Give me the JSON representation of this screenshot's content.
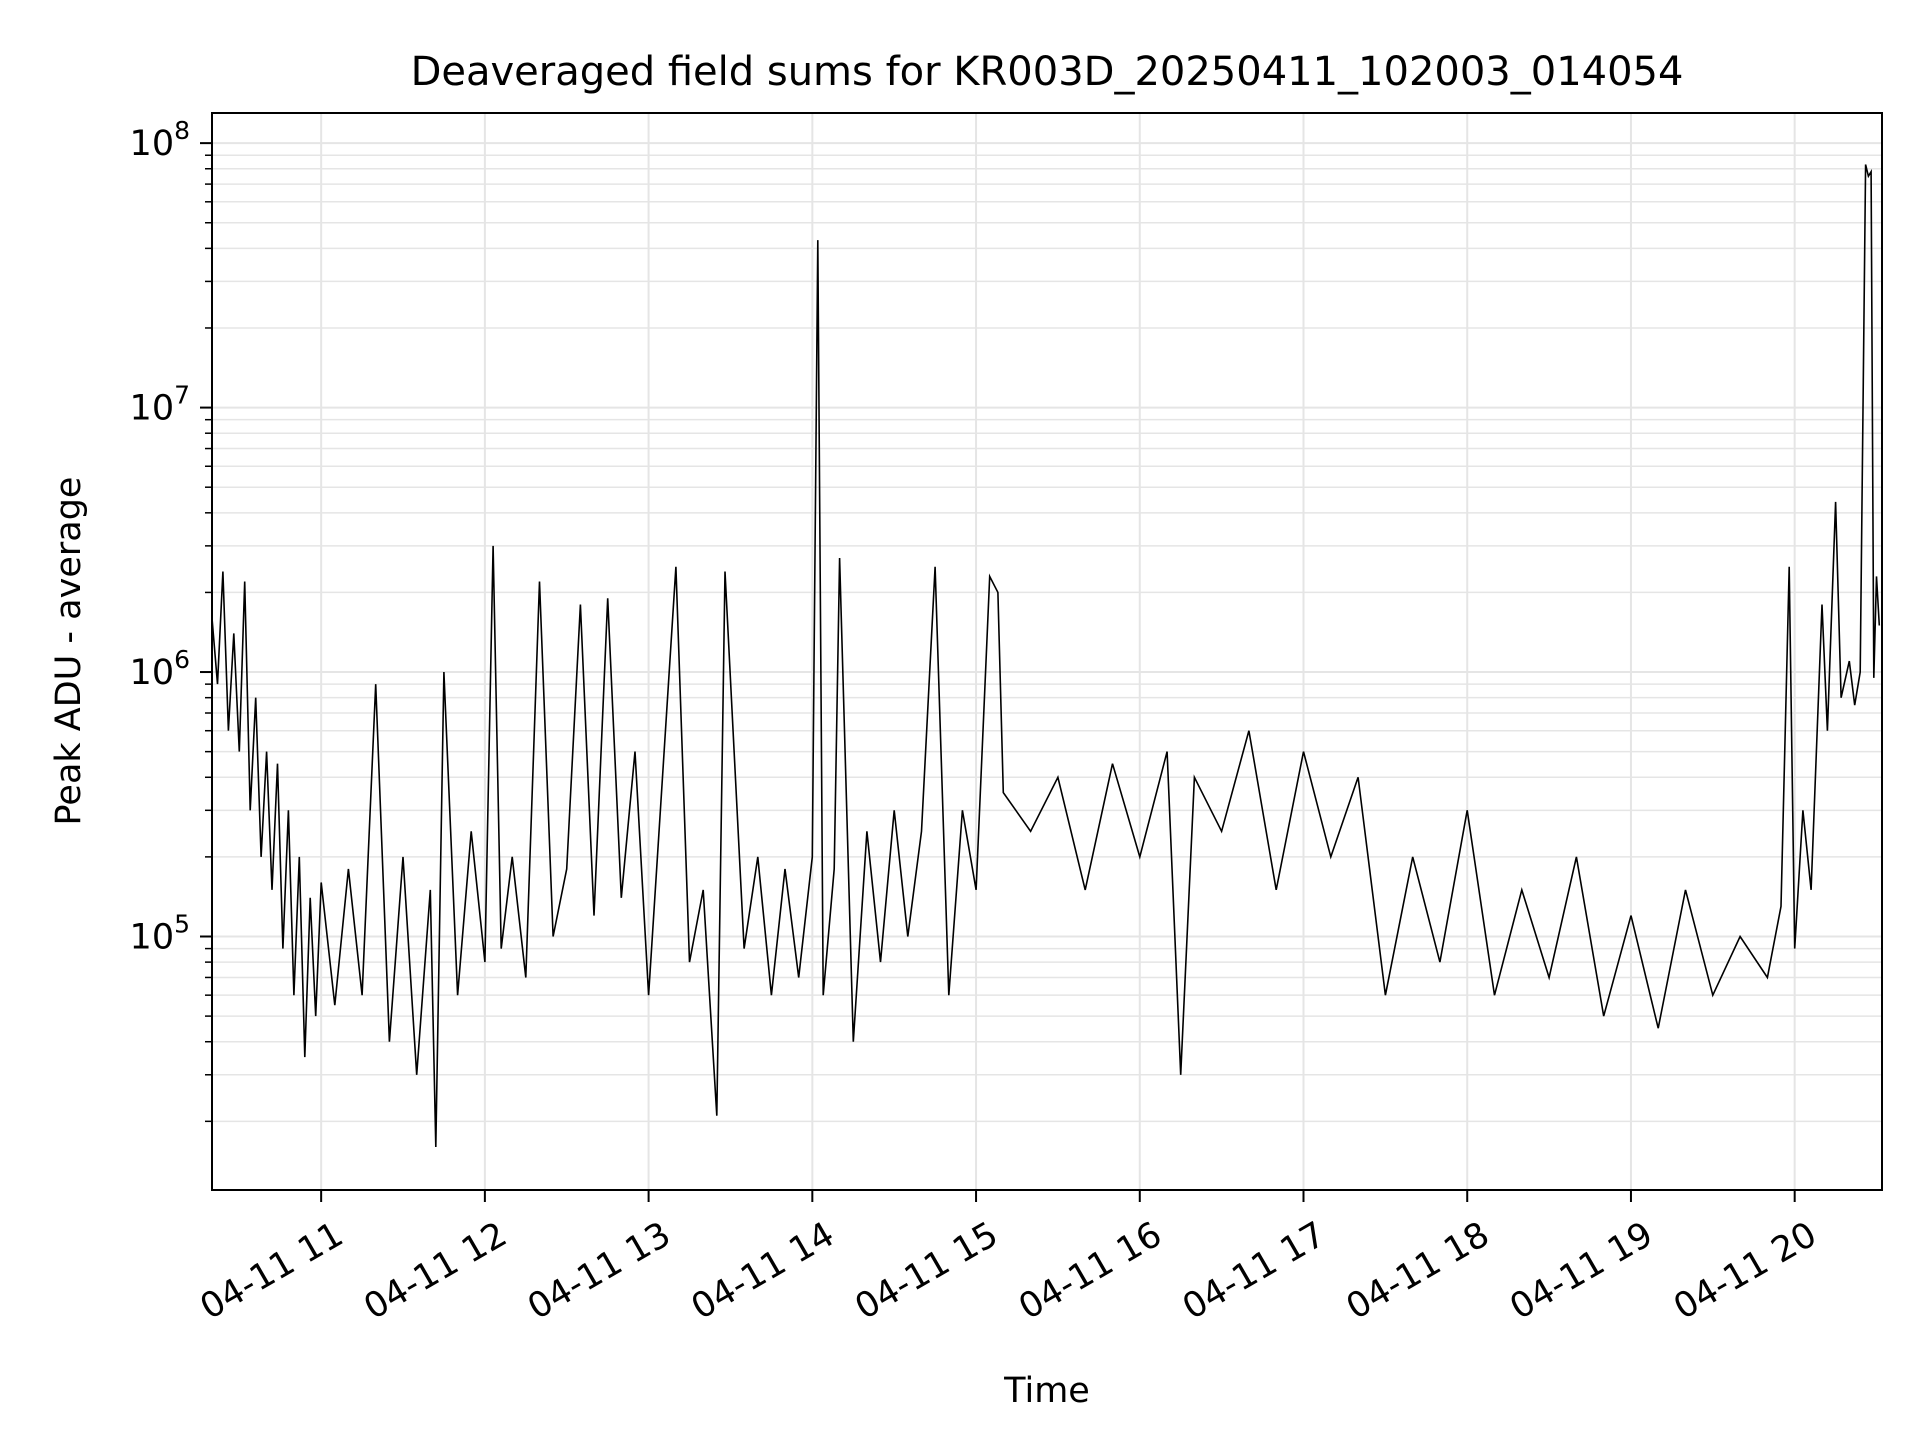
{
  "chart_data": {
    "type": "line",
    "title": "Deaveraged field sums for KR003D_20250411_102003_014054",
    "xlabel": "Time",
    "ylabel": "Peak ADU - average",
    "yscale": "log",
    "ylim": [
      11000,
      130000000
    ],
    "xlim": [
      "2025-04-11 10:20",
      "2025-04-11 20:32"
    ],
    "x_ticks": [
      {
        "at": "2025-04-11 11:00",
        "label": "04-11 11"
      },
      {
        "at": "2025-04-11 12:00",
        "label": "04-11 12"
      },
      {
        "at": "2025-04-11 13:00",
        "label": "04-11 13"
      },
      {
        "at": "2025-04-11 14:00",
        "label": "04-11 14"
      },
      {
        "at": "2025-04-11 15:00",
        "label": "04-11 15"
      },
      {
        "at": "2025-04-11 16:00",
        "label": "04-11 16"
      },
      {
        "at": "2025-04-11 17:00",
        "label": "04-11 17"
      },
      {
        "at": "2025-04-11 18:00",
        "label": "04-11 18"
      },
      {
        "at": "2025-04-11 19:00",
        "label": "04-11 19"
      },
      {
        "at": "2025-04-11 20:00",
        "label": "04-11 20"
      }
    ],
    "y_ticks": [
      {
        "value": 100000,
        "base": "10",
        "exp": "5"
      },
      {
        "value": 1000000,
        "base": "10",
        "exp": "6"
      },
      {
        "value": 10000000,
        "base": "10",
        "exp": "7"
      },
      {
        "value": 100000000,
        "base": "10",
        "exp": "8"
      }
    ],
    "grid": true,
    "line_color": "#000000",
    "grid_color": "#e5e5e5",
    "series": [
      {
        "values": [
          [
            "2025-04-11 10:20",
            1600000
          ],
          [
            "2025-04-11 10:22",
            900000
          ],
          [
            "2025-04-11 10:24",
            2400000
          ],
          [
            "2025-04-11 10:26",
            600000
          ],
          [
            "2025-04-11 10:28",
            1400000
          ],
          [
            "2025-04-11 10:30",
            500000
          ],
          [
            "2025-04-11 10:32",
            2200000
          ],
          [
            "2025-04-11 10:34",
            300000
          ],
          [
            "2025-04-11 10:36",
            800000
          ],
          [
            "2025-04-11 10:38",
            200000
          ],
          [
            "2025-04-11 10:40",
            500000
          ],
          [
            "2025-04-11 10:42",
            150000
          ],
          [
            "2025-04-11 10:44",
            450000
          ],
          [
            "2025-04-11 10:46",
            90000
          ],
          [
            "2025-04-11 10:48",
            300000
          ],
          [
            "2025-04-11 10:50",
            60000
          ],
          [
            "2025-04-11 10:52",
            200000
          ],
          [
            "2025-04-11 10:54",
            35000
          ],
          [
            "2025-04-11 10:56",
            140000
          ],
          [
            "2025-04-11 10:58",
            50000
          ],
          [
            "2025-04-11 11:00",
            160000
          ],
          [
            "2025-04-11 11:05",
            55000
          ],
          [
            "2025-04-11 11:10",
            180000
          ],
          [
            "2025-04-11 11:15",
            60000
          ],
          [
            "2025-04-11 11:20",
            900000
          ],
          [
            "2025-04-11 11:25",
            40000
          ],
          [
            "2025-04-11 11:30",
            200000
          ],
          [
            "2025-04-11 11:35",
            30000
          ],
          [
            "2025-04-11 11:40",
            150000
          ],
          [
            "2025-04-11 11:42",
            16000
          ],
          [
            "2025-04-11 11:45",
            1000000
          ],
          [
            "2025-04-11 11:50",
            60000
          ],
          [
            "2025-04-11 11:55",
            250000
          ],
          [
            "2025-04-11 12:00",
            80000
          ],
          [
            "2025-04-11 12:03",
            3000000
          ],
          [
            "2025-04-11 12:06",
            90000
          ],
          [
            "2025-04-11 12:10",
            200000
          ],
          [
            "2025-04-11 12:15",
            70000
          ],
          [
            "2025-04-11 12:20",
            2200000
          ],
          [
            "2025-04-11 12:25",
            100000
          ],
          [
            "2025-04-11 12:30",
            180000
          ],
          [
            "2025-04-11 12:35",
            1800000
          ],
          [
            "2025-04-11 12:40",
            120000
          ],
          [
            "2025-04-11 12:45",
            1900000
          ],
          [
            "2025-04-11 12:50",
            140000
          ],
          [
            "2025-04-11 12:55",
            500000
          ],
          [
            "2025-04-11 13:00",
            60000
          ],
          [
            "2025-04-11 13:10",
            2500000
          ],
          [
            "2025-04-11 13:15",
            80000
          ],
          [
            "2025-04-11 13:20",
            150000
          ],
          [
            "2025-04-11 13:25",
            21000
          ],
          [
            "2025-04-11 13:28",
            2400000
          ],
          [
            "2025-04-11 13:35",
            90000
          ],
          [
            "2025-04-11 13:40",
            200000
          ],
          [
            "2025-04-11 13:45",
            60000
          ],
          [
            "2025-04-11 13:50",
            180000
          ],
          [
            "2025-04-11 13:55",
            70000
          ],
          [
            "2025-04-11 14:00",
            200000
          ],
          [
            "2025-04-11 14:02",
            43000000
          ],
          [
            "2025-04-11 14:04",
            60000
          ],
          [
            "2025-04-11 14:08",
            180000
          ],
          [
            "2025-04-11 14:10",
            2700000
          ],
          [
            "2025-04-11 14:15",
            40000
          ],
          [
            "2025-04-11 14:20",
            250000
          ],
          [
            "2025-04-11 14:25",
            80000
          ],
          [
            "2025-04-11 14:30",
            300000
          ],
          [
            "2025-04-11 14:35",
            100000
          ],
          [
            "2025-04-11 14:40",
            250000
          ],
          [
            "2025-04-11 14:45",
            2500000
          ],
          [
            "2025-04-11 14:50",
            60000
          ],
          [
            "2025-04-11 14:55",
            300000
          ],
          [
            "2025-04-11 15:00",
            150000
          ],
          [
            "2025-04-11 15:05",
            2300000
          ],
          [
            "2025-04-11 15:08",
            2000000
          ],
          [
            "2025-04-11 15:10",
            350000
          ],
          [
            "2025-04-11 15:20",
            250000
          ],
          [
            "2025-04-11 15:30",
            400000
          ],
          [
            "2025-04-11 15:40",
            150000
          ],
          [
            "2025-04-11 15:50",
            450000
          ],
          [
            "2025-04-11 16:00",
            200000
          ],
          [
            "2025-04-11 16:10",
            500000
          ],
          [
            "2025-04-11 16:15",
            30000
          ],
          [
            "2025-04-11 16:20",
            400000
          ],
          [
            "2025-04-11 16:30",
            250000
          ],
          [
            "2025-04-11 16:40",
            600000
          ],
          [
            "2025-04-11 16:50",
            150000
          ],
          [
            "2025-04-11 17:00",
            500000
          ],
          [
            "2025-04-11 17:10",
            200000
          ],
          [
            "2025-04-11 17:20",
            400000
          ],
          [
            "2025-04-11 17:30",
            60000
          ],
          [
            "2025-04-11 17:40",
            200000
          ],
          [
            "2025-04-11 17:50",
            80000
          ],
          [
            "2025-04-11 18:00",
            300000
          ],
          [
            "2025-04-11 18:10",
            60000
          ],
          [
            "2025-04-11 18:20",
            150000
          ],
          [
            "2025-04-11 18:30",
            70000
          ],
          [
            "2025-04-11 18:40",
            200000
          ],
          [
            "2025-04-11 18:50",
            50000
          ],
          [
            "2025-04-11 19:00",
            120000
          ],
          [
            "2025-04-11 19:10",
            45000
          ],
          [
            "2025-04-11 19:20",
            150000
          ],
          [
            "2025-04-11 19:30",
            60000
          ],
          [
            "2025-04-11 19:40",
            100000
          ],
          [
            "2025-04-11 19:50",
            70000
          ],
          [
            "2025-04-11 19:55",
            130000
          ],
          [
            "2025-04-11 19:58",
            2500000
          ],
          [
            "2025-04-11 20:00",
            90000
          ],
          [
            "2025-04-11 20:03",
            300000
          ],
          [
            "2025-04-11 20:06",
            150000
          ],
          [
            "2025-04-11 20:10",
            1800000
          ],
          [
            "2025-04-11 20:12",
            600000
          ],
          [
            "2025-04-11 20:15",
            4400000
          ],
          [
            "2025-04-11 20:17",
            800000
          ],
          [
            "2025-04-11 20:20",
            1100000
          ],
          [
            "2025-04-11 20:22",
            750000
          ],
          [
            "2025-04-11 20:24",
            1000000
          ],
          [
            "2025-04-11 20:26",
            83000000
          ],
          [
            "2025-04-11 20:27",
            75000000
          ],
          [
            "2025-04-11 20:28",
            78000000
          ],
          [
            "2025-04-11 20:29",
            950000
          ],
          [
            "2025-04-11 20:30",
            2300000
          ],
          [
            "2025-04-11 20:31",
            1500000
          ]
        ]
      }
    ]
  }
}
